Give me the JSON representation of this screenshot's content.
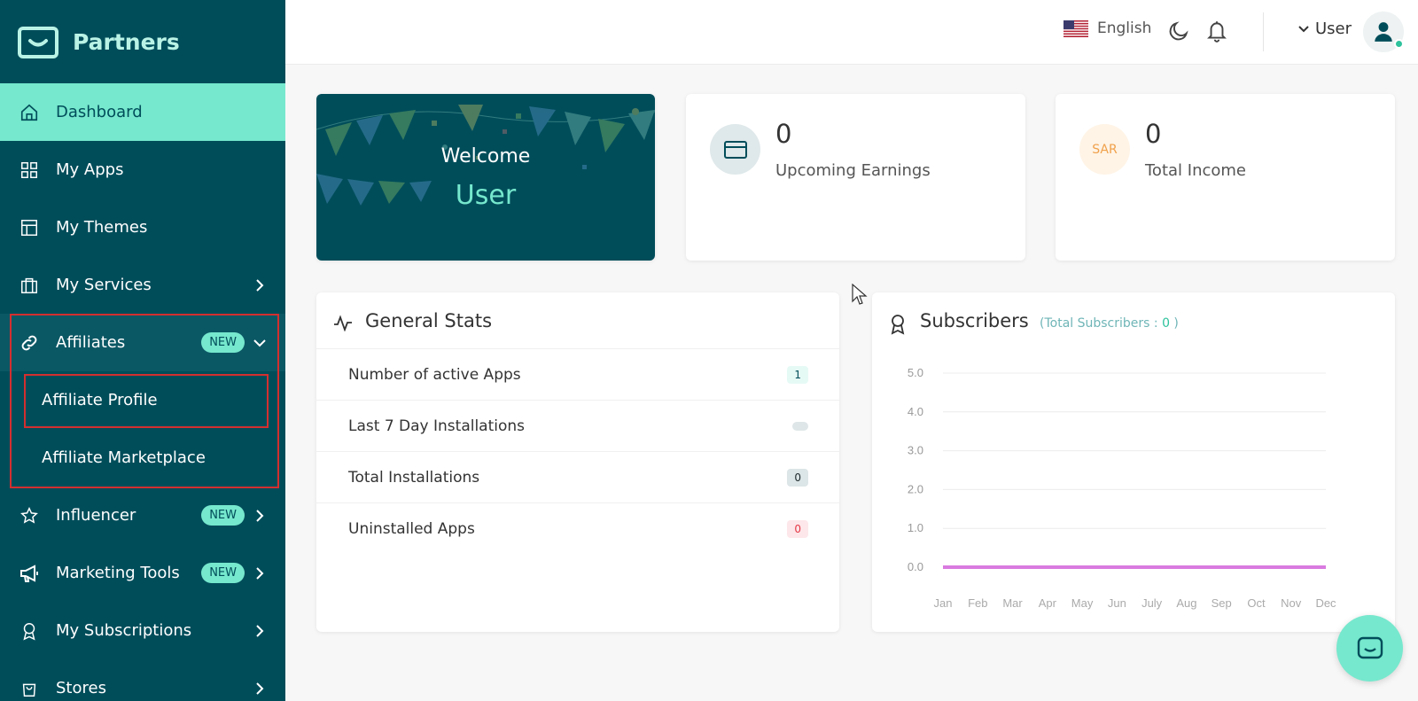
{
  "brand": {
    "name": "Partners"
  },
  "sidebar": {
    "items": [
      {
        "label": "Dashboard",
        "icon": "home-icon"
      },
      {
        "label": "My Apps",
        "icon": "grid-icon"
      },
      {
        "label": "My Themes",
        "icon": "layout-icon"
      },
      {
        "label": "My Services",
        "icon": "briefcase-icon"
      },
      {
        "label": "Affiliates",
        "icon": "link-icon",
        "badge": "NEW"
      },
      {
        "label": "Influencer",
        "icon": "star-icon",
        "badge": "NEW"
      },
      {
        "label": "Marketing Tools",
        "icon": "megaphone-icon",
        "badge": "NEW"
      },
      {
        "label": "My Subscriptions",
        "icon": "award-icon"
      },
      {
        "label": "Stores",
        "icon": "bag-icon"
      }
    ],
    "affiliate_sub": [
      "Affiliate Profile",
      "Affiliate Marketplace"
    ]
  },
  "topbar": {
    "language": "English",
    "user": "User"
  },
  "welcome": {
    "greeting": "Welcome",
    "name": "User"
  },
  "earnings": {
    "value": "0",
    "label": "Upcoming Earnings"
  },
  "income": {
    "value": "0",
    "label": "Total Income",
    "currency": "SAR"
  },
  "general_stats": {
    "title": "General Stats",
    "rows": [
      {
        "label": "Number of active Apps",
        "value": "1"
      },
      {
        "label": "Last 7 Day Installations",
        "value": ""
      },
      {
        "label": "Total Installations",
        "value": "0"
      },
      {
        "label": "Uninstalled Apps",
        "value": "0"
      }
    ]
  },
  "subscribers": {
    "title": "Subscribers",
    "note_prefix": "(Total Subscribers : ",
    "note_value": "0",
    "note_suffix": " )"
  },
  "chart_data": {
    "type": "line",
    "categories": [
      "Jan",
      "Feb",
      "Mar",
      "Apr",
      "May",
      "Jun",
      "July",
      "Aug",
      "Sep",
      "Oct",
      "Nov",
      "Dec"
    ],
    "series": [
      {
        "values": [
          0,
          0,
          0,
          0,
          0,
          0,
          0,
          0,
          0,
          0,
          0,
          0
        ],
        "color": "#d97be0"
      }
    ],
    "yticks": [
      "5.0",
      "4.0",
      "3.0",
      "2.0",
      "1.0",
      "0.0"
    ],
    "ylim": [
      0,
      5
    ],
    "grid": true
  },
  "colors": {
    "sidebar": "#004d5a",
    "accent": "#76e8cd",
    "highlight": "#d32f2f"
  }
}
